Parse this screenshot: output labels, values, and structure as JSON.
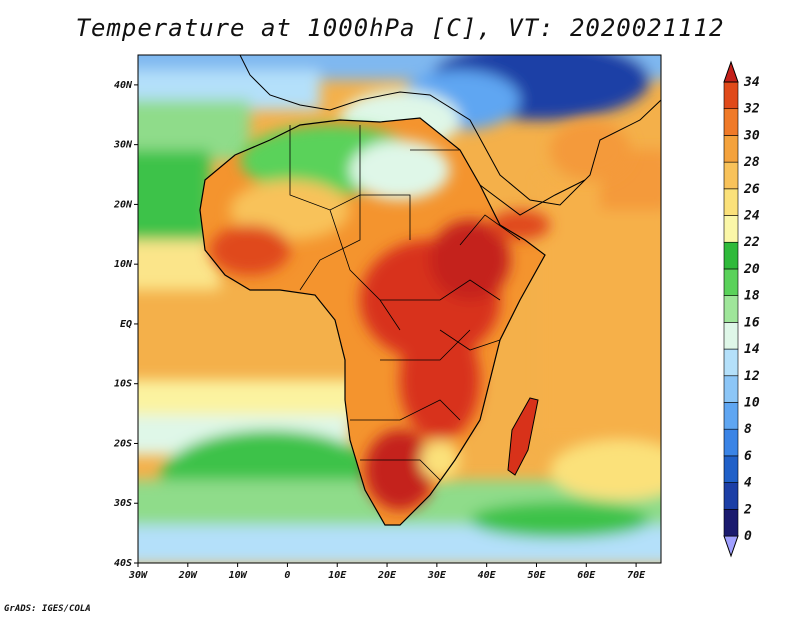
{
  "title": "Temperature at 1000hPa [C], VT: 2020021112",
  "credit": "GrADS: IGES/COLA",
  "map": {
    "projection": "lat-lon",
    "lon_range": [
      -30,
      75
    ],
    "lat_range": [
      -40,
      45
    ],
    "x_ticks": [
      {
        "lon": -30,
        "label": "30W"
      },
      {
        "lon": -20,
        "label": "20W"
      },
      {
        "lon": -10,
        "label": "10W"
      },
      {
        "lon": 0,
        "label": "0"
      },
      {
        "lon": 10,
        "label": "10E"
      },
      {
        "lon": 20,
        "label": "20E"
      },
      {
        "lon": 30,
        "label": "30E"
      },
      {
        "lon": 40,
        "label": "40E"
      },
      {
        "lon": 50,
        "label": "50E"
      },
      {
        "lon": 60,
        "label": "60E"
      },
      {
        "lon": 70,
        "label": "70E"
      }
    ],
    "y_ticks": [
      {
        "lat": 40,
        "label": "40N"
      },
      {
        "lat": 30,
        "label": "30N"
      },
      {
        "lat": 20,
        "label": "20N"
      },
      {
        "lat": 10,
        "label": "10N"
      },
      {
        "lat": 0,
        "label": "EQ"
      },
      {
        "lat": -10,
        "label": "10S"
      },
      {
        "lat": -20,
        "label": "20S"
      },
      {
        "lat": -30,
        "label": "30S"
      },
      {
        "lat": -40,
        "label": "40S"
      }
    ]
  },
  "colorbar": {
    "levels": [
      0,
      2,
      4,
      6,
      8,
      10,
      12,
      14,
      16,
      18,
      20,
      22,
      24,
      26,
      28,
      30,
      32,
      34
    ],
    "colors": [
      "#a0a0ff",
      "#1a1a6e",
      "#1c3fa6",
      "#2060c8",
      "#3a84e6",
      "#5fa6f2",
      "#8cc6f7",
      "#b4e0fa",
      "#dff7e8",
      "#9fe69a",
      "#5ad25a",
      "#2fba3a",
      "#fbf7a8",
      "#fbe17a",
      "#f8c25a",
      "#f4a23c",
      "#f07a28",
      "#e04a1a",
      "#c4201a"
    ]
  }
}
